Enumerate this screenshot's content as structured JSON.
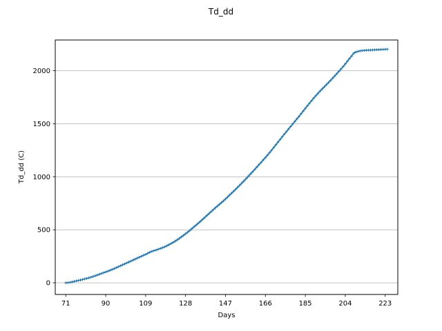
{
  "chart_data": {
    "type": "line",
    "title": "Td_dd",
    "xlabel": "Days",
    "ylabel": "Td_dd (C)",
    "xlim": [
      66,
      229
    ],
    "ylim": [
      -110,
      2290
    ],
    "xticks": [
      71,
      90,
      109,
      128,
      147,
      166,
      185,
      204,
      223
    ],
    "yticks": [
      0,
      500,
      1000,
      1500,
      2000
    ],
    "grid": "y-major",
    "marker": "+",
    "series": [
      {
        "name": "",
        "color": "#1f77b4",
        "x": [
          71,
          72,
          73,
          74,
          75,
          76,
          77,
          78,
          79,
          80,
          81,
          82,
          83,
          84,
          85,
          86,
          87,
          88,
          89,
          90,
          91,
          92,
          93,
          94,
          95,
          96,
          97,
          98,
          99,
          100,
          101,
          102,
          103,
          104,
          105,
          106,
          107,
          108,
          109,
          110,
          111,
          112,
          113,
          114,
          115,
          116,
          117,
          118,
          119,
          120,
          121,
          122,
          123,
          124,
          125,
          126,
          127,
          128,
          129,
          130,
          131,
          132,
          133,
          134,
          135,
          136,
          137,
          138,
          139,
          140,
          141,
          142,
          143,
          144,
          145,
          146,
          147,
          148,
          149,
          150,
          151,
          152,
          153,
          154,
          155,
          156,
          157,
          158,
          159,
          160,
          161,
          162,
          163,
          164,
          165,
          166,
          167,
          168,
          169,
          170,
          171,
          172,
          173,
          174,
          175,
          176,
          177,
          178,
          179,
          180,
          181,
          182,
          183,
          184,
          185,
          186,
          187,
          188,
          189,
          190,
          191,
          192,
          193,
          194,
          195,
          196,
          197,
          198,
          199,
          200,
          201,
          202,
          203,
          204,
          205,
          206,
          207,
          208,
          209,
          210,
          211,
          212,
          213,
          214,
          215,
          216,
          217,
          218,
          219,
          220,
          221,
          222,
          223,
          224
        ],
        "y": [
          0,
          1,
          4,
          8,
          13,
          18,
          22,
          26,
          31,
          36,
          41,
          47,
          53,
          59,
          66,
          73,
          80,
          88,
          95,
          102,
          109,
          117,
          125,
          133,
          142,
          151,
          160,
          169,
          178,
          187,
          196,
          205,
          214,
          223,
          232,
          241,
          250,
          259,
          268,
          278,
          288,
          297,
          303,
          309,
          316,
          323,
          331,
          339,
          348,
          358,
          369,
          380,
          392,
          405,
          418,
          432,
          447,
          462,
          477,
          493,
          510,
          527,
          544,
          561,
          578,
          596,
          614,
          632,
          650,
          668,
          686,
          704,
          721,
          738,
          755,
          772,
          790,
          809,
          828,
          847,
          866,
          885,
          905,
          925,
          945,
          965,
          986,
          1007,
          1028,
          1049,
          1071,
          1093,
          1115,
          1137,
          1159,
          1181,
          1204,
          1228,
          1252,
          1277,
          1302,
          1327,
          1352,
          1377,
          1402,
          1426,
          1450,
          1474,
          1498,
          1522,
          1546,
          1570,
          1595,
          1620,
          1645,
          1670,
          1694,
          1718,
          1742,
          1765,
          1787,
          1808,
          1828,
          1848,
          1868,
          1888,
          1909,
          1930,
          1951,
          1973,
          1995,
          2017,
          2040,
          2064,
          2089,
          2114,
          2139,
          2165,
          2176,
          2182,
          2187,
          2190,
          2192,
          2193,
          2194,
          2195,
          2196,
          2197,
          2198,
          2199,
          2200,
          2201,
          2202,
          2203
        ]
      }
    ]
  }
}
